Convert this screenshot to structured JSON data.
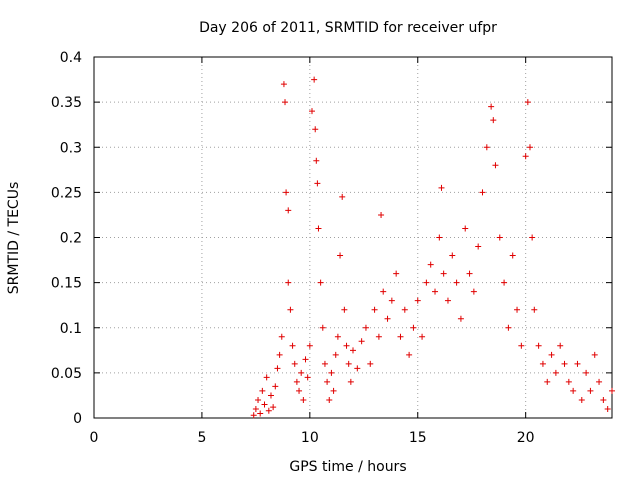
{
  "chart_data": {
    "type": "scatter",
    "title": "Day 206 of 2011, SRMTID for receiver ufpr",
    "xlabel": "GPS time / hours",
    "ylabel": "SRMTID / TECUs",
    "xlim": [
      0,
      24
    ],
    "ylim": [
      0,
      0.4
    ],
    "x_ticks": [
      0,
      5,
      10,
      15,
      20
    ],
    "x_tick_labels": [
      "0",
      "5",
      "10",
      "15",
      "20"
    ],
    "y_ticks": [
      0,
      0.05,
      0.1,
      0.15,
      0.2,
      0.25,
      0.3,
      0.35,
      0.4
    ],
    "y_tick_labels": [
      "0",
      "0.05",
      "0.1",
      "0.15",
      "0.2",
      "0.25",
      "0.3",
      "0.35",
      "0.4"
    ],
    "grid": true,
    "marker": "+",
    "marker_color": "#e00000",
    "series": [
      {
        "name": "SRMTID",
        "points": [
          [
            7.4,
            0.003
          ],
          [
            7.5,
            0.01
          ],
          [
            7.6,
            0.02
          ],
          [
            7.7,
            0.005
          ],
          [
            7.8,
            0.03
          ],
          [
            7.9,
            0.015
          ],
          [
            8.0,
            0.045
          ],
          [
            8.1,
            0.008
          ],
          [
            8.2,
            0.025
          ],
          [
            8.3,
            0.012
          ],
          [
            8.4,
            0.035
          ],
          [
            8.5,
            0.055
          ],
          [
            8.6,
            0.07
          ],
          [
            8.7,
            0.09
          ],
          [
            8.8,
            0.37
          ],
          [
            8.85,
            0.35
          ],
          [
            8.9,
            0.25
          ],
          [
            9.0,
            0.23
          ],
          [
            9.0,
            0.15
          ],
          [
            9.1,
            0.12
          ],
          [
            9.2,
            0.08
          ],
          [
            9.3,
            0.06
          ],
          [
            9.4,
            0.04
          ],
          [
            9.5,
            0.03
          ],
          [
            9.6,
            0.05
          ],
          [
            9.7,
            0.02
          ],
          [
            9.8,
            0.065
          ],
          [
            9.9,
            0.045
          ],
          [
            10.0,
            0.08
          ],
          [
            10.1,
            0.34
          ],
          [
            10.2,
            0.375
          ],
          [
            10.25,
            0.32
          ],
          [
            10.3,
            0.285
          ],
          [
            10.35,
            0.26
          ],
          [
            10.4,
            0.21
          ],
          [
            10.5,
            0.15
          ],
          [
            10.6,
            0.1
          ],
          [
            10.7,
            0.06
          ],
          [
            10.8,
            0.04
          ],
          [
            10.9,
            0.02
          ],
          [
            11.0,
            0.05
          ],
          [
            11.1,
            0.03
          ],
          [
            11.2,
            0.07
          ],
          [
            11.3,
            0.09
          ],
          [
            11.4,
            0.18
          ],
          [
            11.5,
            0.245
          ],
          [
            11.6,
            0.12
          ],
          [
            11.7,
            0.08
          ],
          [
            11.8,
            0.06
          ],
          [
            11.9,
            0.04
          ],
          [
            12.0,
            0.075
          ],
          [
            12.2,
            0.055
          ],
          [
            12.4,
            0.085
          ],
          [
            12.6,
            0.1
          ],
          [
            12.8,
            0.06
          ],
          [
            13.0,
            0.12
          ],
          [
            13.2,
            0.09
          ],
          [
            13.3,
            0.225
          ],
          [
            13.4,
            0.14
          ],
          [
            13.6,
            0.11
          ],
          [
            13.8,
            0.13
          ],
          [
            14.0,
            0.16
          ],
          [
            14.2,
            0.09
          ],
          [
            14.4,
            0.12
          ],
          [
            14.6,
            0.07
          ],
          [
            14.8,
            0.1
          ],
          [
            15.0,
            0.13
          ],
          [
            15.2,
            0.09
          ],
          [
            15.4,
            0.15
          ],
          [
            15.6,
            0.17
          ],
          [
            15.8,
            0.14
          ],
          [
            16.0,
            0.2
          ],
          [
            16.1,
            0.255
          ],
          [
            16.2,
            0.16
          ],
          [
            16.4,
            0.13
          ],
          [
            16.6,
            0.18
          ],
          [
            16.8,
            0.15
          ],
          [
            17.0,
            0.11
          ],
          [
            17.2,
            0.21
          ],
          [
            17.4,
            0.16
          ],
          [
            17.6,
            0.14
          ],
          [
            17.8,
            0.19
          ],
          [
            18.0,
            0.25
          ],
          [
            18.2,
            0.3
          ],
          [
            18.4,
            0.345
          ],
          [
            18.5,
            0.33
          ],
          [
            18.6,
            0.28
          ],
          [
            18.8,
            0.2
          ],
          [
            19.0,
            0.15
          ],
          [
            19.2,
            0.1
          ],
          [
            19.4,
            0.18
          ],
          [
            19.6,
            0.12
          ],
          [
            19.8,
            0.08
          ],
          [
            20.0,
            0.29
          ],
          [
            20.1,
            0.35
          ],
          [
            20.2,
            0.3
          ],
          [
            20.3,
            0.2
          ],
          [
            20.4,
            0.12
          ],
          [
            20.6,
            0.08
          ],
          [
            20.8,
            0.06
          ],
          [
            21.0,
            0.04
          ],
          [
            21.2,
            0.07
          ],
          [
            21.4,
            0.05
          ],
          [
            21.6,
            0.08
          ],
          [
            21.8,
            0.06
          ],
          [
            22.0,
            0.04
          ],
          [
            22.2,
            0.03
          ],
          [
            22.4,
            0.06
          ],
          [
            22.6,
            0.02
          ],
          [
            22.8,
            0.05
          ],
          [
            23.0,
            0.03
          ],
          [
            23.2,
            0.07
          ],
          [
            23.4,
            0.04
          ],
          [
            23.6,
            0.02
          ],
          [
            23.8,
            0.01
          ],
          [
            24.0,
            0.03
          ]
        ]
      }
    ]
  }
}
